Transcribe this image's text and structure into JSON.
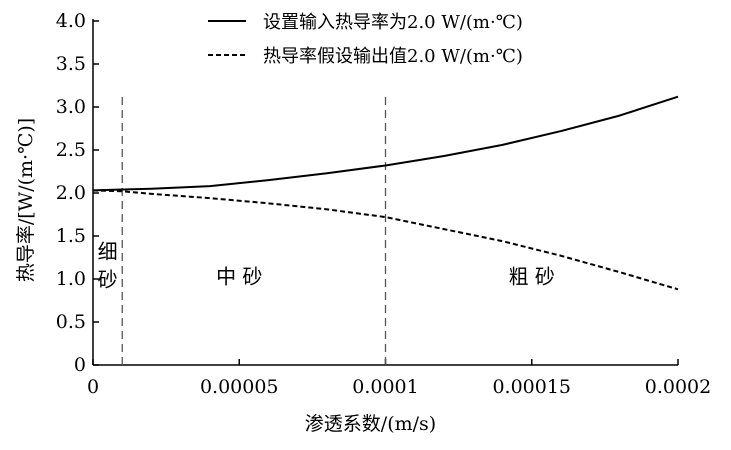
{
  "chart_data": {
    "type": "line",
    "title": "",
    "xlabel": "渗透系数/(m/s)",
    "ylabel": "热导率/[W/(m·℃)]",
    "xlim": [
      0,
      0.0002
    ],
    "ylim": [
      0,
      4.0
    ],
    "x_ticks": [
      0,
      5e-05,
      0.0001,
      0.00015,
      0.0002
    ],
    "x_tick_labels": [
      "0",
      "0.00005",
      "0.0001",
      "0.00015",
      "0.0002"
    ],
    "y_ticks": [
      0,
      0.5,
      1.0,
      1.5,
      2.0,
      2.5,
      3.0,
      3.5,
      4.0
    ],
    "y_tick_labels": [
      "0",
      "0.5",
      "1.0",
      "1.5",
      "2.0",
      "2.5",
      "3.0",
      "3.5",
      "4.0"
    ],
    "grid": false,
    "legend_position": "top-center",
    "series": [
      {
        "name": "设置输入热导率为2.0 W/(m·℃)",
        "style": "solid",
        "color": "#000000",
        "x": [
          0,
          1e-05,
          2e-05,
          4e-05,
          6e-05,
          8e-05,
          0.0001,
          0.00012,
          0.00014,
          0.00016,
          0.00018,
          0.0002
        ],
        "y": [
          2.03,
          2.04,
          2.05,
          2.08,
          2.15,
          2.23,
          2.32,
          2.43,
          2.56,
          2.72,
          2.9,
          3.12
        ]
      },
      {
        "name": "热导率假设输出值2.0 W/(m·℃)",
        "style": "dashed",
        "color": "#000000",
        "x": [
          0,
          1e-05,
          2e-05,
          4e-05,
          6e-05,
          8e-05,
          0.0001,
          0.00012,
          0.00014,
          0.00016,
          0.00018,
          0.0002
        ],
        "y": [
          2.03,
          2.02,
          1.99,
          1.94,
          1.88,
          1.81,
          1.72,
          1.58,
          1.44,
          1.27,
          1.08,
          0.88
        ]
      }
    ],
    "vertical_lines": [
      {
        "x": 1e-05,
        "style": "dashed"
      },
      {
        "x": 0.0001,
        "style": "dashed"
      }
    ],
    "region_labels": [
      {
        "text": "细\n砂",
        "x": 5e-06,
        "y": 1.1
      },
      {
        "text": "中  砂",
        "x": 5e-05,
        "y": 0.95
      },
      {
        "text": "粗  砂",
        "x": 0.00015,
        "y": 0.95
      }
    ]
  }
}
